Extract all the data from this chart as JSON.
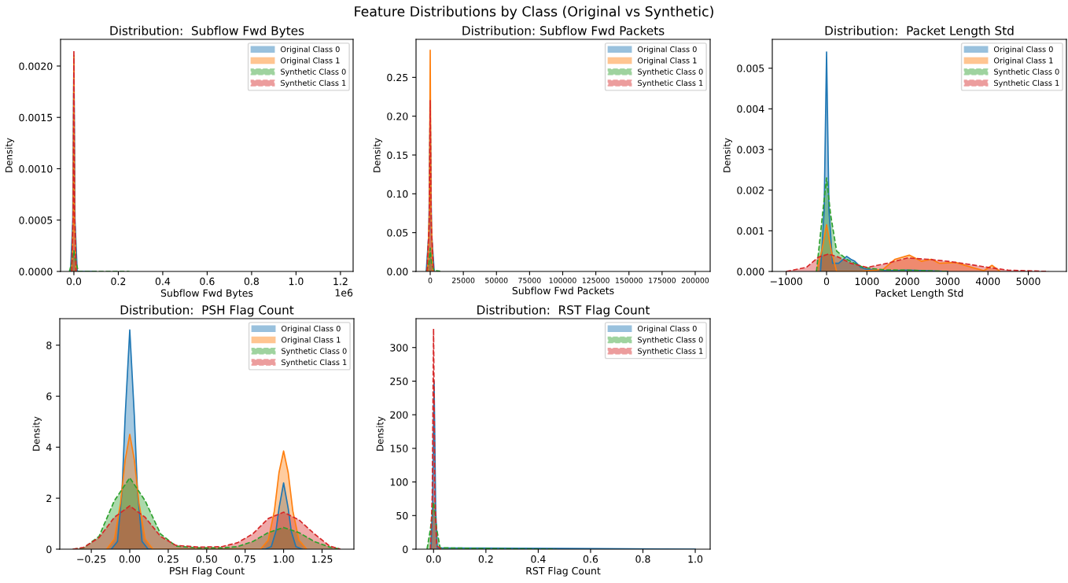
{
  "chart_data": [
    {
      "type": "other",
      "title": "Feature Distributions by Class (Original vs Synthetic)"
    },
    {
      "type": "area",
      "title": "Distribution:  Subflow Fwd Bytes",
      "xlabel": "Subflow Fwd Bytes",
      "ylabel": "Density",
      "xlim": [
        -0.06,
        1.257
      ],
      "xticks": [
        {
          "value": 0,
          "label": "0.0"
        },
        {
          "value": 0.2,
          "label": "0.2"
        },
        {
          "value": 0.4,
          "label": "0.4"
        },
        {
          "value": 0.6,
          "label": "0.6"
        },
        {
          "value": 0.8,
          "label": "0.8"
        },
        {
          "value": 1,
          "label": "1.0"
        },
        {
          "value": 1.2,
          "label": "1.2"
        }
      ],
      "ylim": [
        0,
        0.00226
      ],
      "yticks": [
        {
          "value": 0,
          "label": "0.0000"
        },
        {
          "value": 0.0005,
          "label": "0.0005"
        },
        {
          "value": 0.001,
          "label": "0.0010"
        },
        {
          "value": 0.0015,
          "label": "0.0015"
        },
        {
          "value": 0.002,
          "label": "0.0020"
        }
      ],
      "legend": "top right",
      "grid": false,
      "annotations": [
        "1e6"
      ],
      "series": [
        {
          "name": "Original Class 0",
          "color": "#1f77b4",
          "line_style": "solid",
          "x": [
            -0.015,
            -0.005,
            0,
            0.005,
            0.015,
            0.1
          ],
          "values": [
            0,
            0.0005,
            0.0021,
            0.0005,
            0,
            0
          ]
        },
        {
          "name": "Original Class 1",
          "color": "#ff7f0e",
          "line_style": "solid",
          "x": [
            -0.01,
            -0.003,
            0,
            0.003,
            0.01
          ],
          "values": [
            0,
            0.0005,
            0.0021,
            0.0005,
            0
          ]
        },
        {
          "name": "Synthetic Class 0",
          "color": "#2ca02c",
          "line_style": "dashed",
          "x": [
            -0.02,
            -0.008,
            0,
            0.008,
            0.02,
            0.1,
            0.23,
            0.25
          ],
          "values": [
            0,
            0.0001,
            0.0002,
            0.0001,
            0,
            0,
            0,
            0
          ]
        },
        {
          "name": "Synthetic Class 1",
          "color": "#d62728",
          "line_style": "dashed",
          "x": [
            -0.01,
            -0.003,
            0,
            0.003,
            0.01
          ],
          "values": [
            0,
            0.0006,
            0.00215,
            0.0006,
            0
          ]
        }
      ]
    },
    {
      "type": "area",
      "title": "Distribution: Subflow Fwd Packets",
      "xlabel": "Subflow Fwd Packets",
      "ylabel": "Density",
      "xlim": [
        -10700,
        211300
      ],
      "xticks": [
        0,
        25000,
        50000,
        75000,
        100000,
        125000,
        150000,
        175000,
        200000
      ],
      "ylim": [
        0,
        0.299
      ],
      "yticks": [
        {
          "value": 0,
          "label": "0.00"
        },
        {
          "value": 0.05,
          "label": "0.05"
        },
        {
          "value": 0.1,
          "label": "0.10"
        },
        {
          "value": 0.15,
          "label": "0.15"
        },
        {
          "value": 0.2,
          "label": "0.20"
        },
        {
          "value": 0.25,
          "label": "0.25"
        }
      ],
      "legend": "top right",
      "grid": false,
      "series": [
        {
          "name": "Original Class 0",
          "color": "#1f77b4",
          "line_style": "solid",
          "x": [
            -3000,
            -1000,
            0,
            1000,
            3000
          ],
          "values": [
            0,
            0.05,
            0.21,
            0.05,
            0
          ]
        },
        {
          "name": "Original Class 1",
          "color": "#ff7f0e",
          "line_style": "solid",
          "x": [
            -2000,
            -600,
            0,
            600,
            2000
          ],
          "values": [
            0,
            0.08,
            0.285,
            0.08,
            0
          ]
        },
        {
          "name": "Synthetic Class 0",
          "color": "#2ca02c",
          "line_style": "dashed",
          "x": [
            -3000,
            -1000,
            0,
            1000,
            3000,
            7000,
            7500
          ],
          "values": [
            0,
            0.01,
            0.03,
            0.01,
            0.001,
            0.0005,
            0
          ]
        },
        {
          "name": "Synthetic Class 1",
          "color": "#d62728",
          "line_style": "dashed",
          "x": [
            -2500,
            -800,
            0,
            800,
            2500
          ],
          "values": [
            0,
            0.06,
            0.22,
            0.06,
            0
          ]
        }
      ]
    },
    {
      "type": "area",
      "title": "Distribution:  Packet Length Std",
      "xlabel": "Packet Length Std",
      "ylabel": "Density",
      "xlim": [
        -1345,
        5945
      ],
      "xticks": [
        {
          "value": -1000,
          "label": "−1000"
        },
        0,
        1000,
        2000,
        3000,
        4000,
        5000
      ],
      "ylim": [
        0,
        0.00571
      ],
      "yticks": [
        {
          "value": 0,
          "label": "0.000"
        },
        {
          "value": 0.001,
          "label": "0.001"
        },
        {
          "value": 0.002,
          "label": "0.002"
        },
        {
          "value": 0.003,
          "label": "0.003"
        },
        {
          "value": 0.004,
          "label": "0.004"
        },
        {
          "value": 0.005,
          "label": "0.005"
        }
      ],
      "legend": "top right",
      "grid": false,
      "series": [
        {
          "name": "Original Class 0",
          "color": "#1f77b4",
          "line_style": "solid",
          "x": [
            -150,
            -60,
            0,
            60,
            150,
            300,
            500,
            600,
            700,
            850,
            1000,
            1500,
            2000,
            2500,
            3000
          ],
          "values": [
            0,
            0.0015,
            0.0054,
            0.0015,
            0.0002,
            0.0002,
            0.00037,
            0.0003,
            0.00025,
            0.0001,
            5e-05,
            2e-05,
            3e-05,
            2e-05,
            0
          ]
        },
        {
          "name": "Original Class 1",
          "color": "#ff7f0e",
          "line_style": "solid",
          "x": [
            -250,
            -120,
            0,
            120,
            250,
            800,
            1400,
            1700,
            2050,
            2350,
            2600,
            2800,
            3200,
            3600,
            3900,
            4100,
            4300
          ],
          "values": [
            0,
            0.0005,
            0.00115,
            0.0005,
            0,
            0,
            5e-05,
            0.0003,
            0.0004,
            0.00025,
            0.0003,
            0.0002,
            0.00022,
            0.0001,
            2e-05,
            0.00015,
            0
          ]
        },
        {
          "name": "Synthetic Class 0",
          "color": "#2ca02c",
          "line_style": "dashed",
          "x": [
            -250,
            -100,
            0,
            100,
            250,
            500,
            900,
            1400,
            2000,
            3000
          ],
          "values": [
            0,
            0.0014,
            0.0023,
            0.0014,
            0.0005,
            0.0003,
            0.0001,
            4e-05,
            3e-05,
            0
          ]
        },
        {
          "name": "Synthetic Class 1",
          "color": "#d62728",
          "line_style": "dashed",
          "x": [
            -1000,
            -500,
            -200,
            50,
            300,
            600,
            1000,
            1500,
            2000,
            2500,
            3000,
            3500,
            4000,
            4500,
            5500
          ],
          "values": [
            0,
            0.0001,
            0.00035,
            0.00043,
            0.00035,
            0.0002,
            0.0001,
            0.0002,
            0.00033,
            0.0003,
            0.00025,
            0.00018,
            0.0001,
            3e-05,
            0
          ]
        }
      ]
    },
    {
      "type": "area",
      "title": "Distribution:  PSH Flag Count",
      "xlabel": "PSH Flag Count",
      "ylabel": "Density",
      "xlim": [
        -0.455,
        1.457
      ],
      "xticks": [
        {
          "value": -0.25,
          "label": "−0.25"
        },
        {
          "value": 0,
          "label": "0.00"
        },
        {
          "value": 0.25,
          "label": "0.25"
        },
        {
          "value": 0.5,
          "label": "0.50"
        },
        {
          "value": 0.75,
          "label": "0.75"
        },
        {
          "value": 1,
          "label": "1.00"
        },
        {
          "value": 1.25,
          "label": "1.25"
        }
      ],
      "ylim": [
        0,
        9.04
      ],
      "yticks": [
        0,
        2,
        4,
        6,
        8
      ],
      "legend": "top right",
      "grid": false,
      "series": [
        {
          "name": "Original Class 0",
          "color": "#1f77b4",
          "line_style": "solid",
          "x": [
            -0.12,
            -0.08,
            -0.05,
            -0.03,
            0,
            0.03,
            0.05,
            0.08,
            0.12,
            0.5,
            0.88,
            0.92,
            0.95,
            0.97,
            1.0,
            1.03,
            1.05,
            1.08,
            1.12
          ],
          "values": [
            0,
            0.3,
            2.3,
            5.2,
            8.6,
            5.2,
            2.3,
            0.3,
            0,
            0,
            0,
            0.1,
            0.7,
            1.6,
            2.6,
            1.6,
            0.7,
            0.1,
            0
          ]
        },
        {
          "name": "Original Class 1",
          "color": "#ff7f0e",
          "line_style": "solid",
          "x": [
            -0.15,
            -0.1,
            -0.06,
            -0.03,
            0,
            0.03,
            0.06,
            0.1,
            0.15,
            0.5,
            0.85,
            0.9,
            0.94,
            0.97,
            1.0,
            1.03,
            1.06,
            1.1,
            1.15
          ],
          "values": [
            0,
            0.4,
            1.8,
            3.5,
            4.5,
            3.5,
            1.8,
            0.4,
            0,
            0,
            0,
            0.35,
            1.5,
            3.0,
            3.85,
            3.0,
            1.5,
            0.35,
            0
          ]
        },
        {
          "name": "Synthetic Class 0",
          "color": "#2ca02c",
          "line_style": "dashed",
          "x": [
            -0.37,
            -0.3,
            -0.2,
            -0.1,
            0,
            0.1,
            0.2,
            0.3,
            0.45,
            0.6,
            0.7,
            0.8,
            0.9,
            1.0,
            1.1,
            1.2,
            1.3,
            1.37
          ],
          "values": [
            0,
            0.05,
            0.5,
            1.9,
            2.8,
            1.9,
            0.6,
            0.12,
            0.05,
            0.05,
            0.1,
            0.3,
            0.65,
            0.85,
            0.65,
            0.3,
            0.08,
            0
          ]
        },
        {
          "name": "Synthetic Class 1",
          "color": "#d62728",
          "line_style": "dashed",
          "x": [
            -0.37,
            -0.3,
            -0.2,
            -0.1,
            0,
            0.1,
            0.2,
            0.3,
            0.45,
            0.6,
            0.7,
            0.8,
            0.9,
            1.0,
            1.1,
            1.2,
            1.3,
            1.37
          ],
          "values": [
            0,
            0.07,
            0.45,
            1.25,
            1.7,
            1.25,
            0.5,
            0.15,
            0.08,
            0.1,
            0.25,
            0.6,
            1.2,
            1.45,
            1.15,
            0.6,
            0.12,
            0
          ]
        }
      ]
    },
    {
      "type": "area",
      "title": "Distribution:  RST Flag Count",
      "xlabel": "RST Flag Count",
      "ylabel": "Density",
      "xlim": [
        -0.067,
        1.057
      ],
      "xticks": [
        {
          "value": 0,
          "label": "0.0"
        },
        {
          "value": 0.2,
          "label": "0.2"
        },
        {
          "value": 0.4,
          "label": "0.4"
        },
        {
          "value": 0.6,
          "label": "0.6"
        },
        {
          "value": 0.8,
          "label": "0.8"
        },
        {
          "value": 1,
          "label": "1.0"
        }
      ],
      "ylim": [
        0,
        343
      ],
      "yticks": [
        0,
        50,
        100,
        150,
        200,
        250,
        300
      ],
      "legend": "top right",
      "grid": false,
      "series": [
        {
          "name": "Original Class 0",
          "color": "#1f77b4",
          "line_style": "solid",
          "x": [
            -0.01,
            -0.004,
            0.002,
            0.008,
            0.014,
            0.5,
            1.0
          ],
          "values": [
            0,
            60,
            250,
            60,
            2,
            1,
            0
          ]
        },
        {
          "name": "Synthetic Class 0",
          "color": "#2ca02c",
          "line_style": "dashed",
          "x": [
            -0.025,
            -0.012,
            0,
            0.012,
            0.025,
            0.2,
            0.47
          ],
          "values": [
            0,
            30,
            70,
            30,
            2,
            1,
            0
          ]
        },
        {
          "name": "Synthetic Class 1",
          "color": "#d62728",
          "line_style": "dashed",
          "x": [
            -0.012,
            -0.005,
            0,
            0.005,
            0.012,
            0.03
          ],
          "values": [
            0,
            80,
            328,
            80,
            5,
            0
          ]
        }
      ]
    }
  ]
}
